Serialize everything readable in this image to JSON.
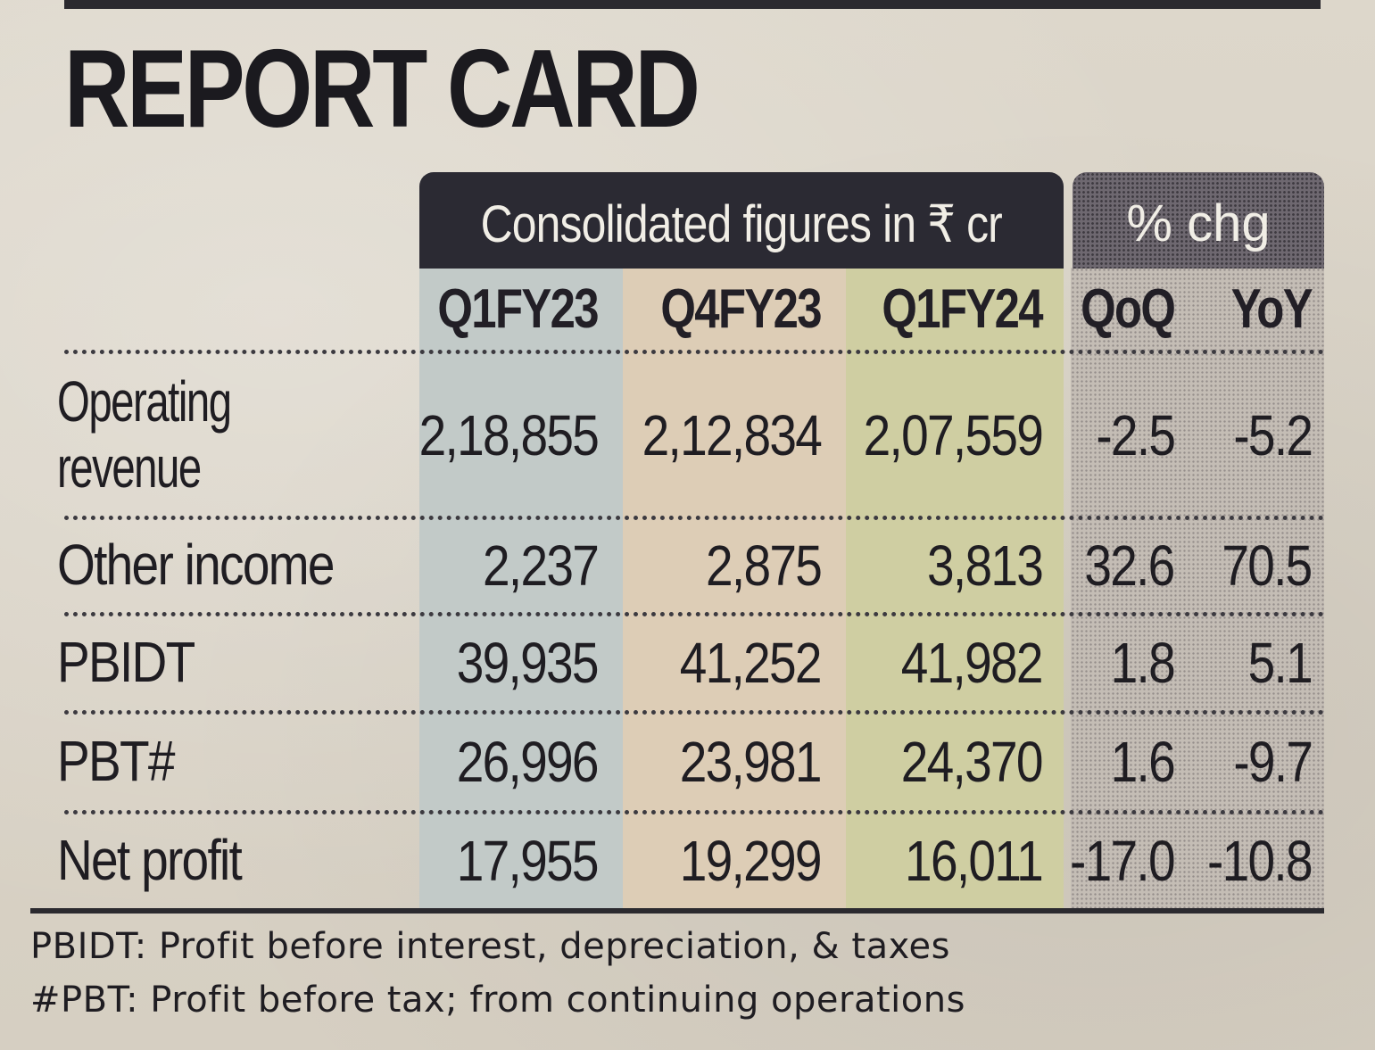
{
  "title": "REPORT CARD",
  "header": {
    "consolidated": "Consolidated figures in ₹ cr",
    "pct_change": "% chg"
  },
  "columns": [
    "Q1FY23",
    "Q4FY23",
    "Q1FY24",
    "QoQ",
    "YoY"
  ],
  "rows": [
    {
      "label": "Operating revenue",
      "label_line1": "Operating",
      "label_line2": "revenue",
      "values": [
        "2,18,855",
        "2,12,834",
        "2,07,559",
        "-2.5",
        "-5.2"
      ]
    },
    {
      "label": "Other income",
      "values": [
        "2,237",
        "2,875",
        "3,813",
        "32.6",
        "70.5"
      ]
    },
    {
      "label": "PBIDT",
      "values": [
        "39,935",
        "41,252",
        "41,982",
        "1.8",
        "5.1"
      ]
    },
    {
      "label": "PBT#",
      "values": [
        "26,996",
        "23,981",
        "24,370",
        "1.6",
        "-9.7"
      ]
    },
    {
      "label": "Net profit",
      "values": [
        "17,955",
        "19,299",
        "16,011",
        "-17.0",
        "-10.8"
      ]
    }
  ],
  "footnotes": [
    "PBIDT: Profit before interest, depreciation, & taxes",
    "#PBT: Profit before tax; from continuing operations"
  ],
  "colors": {
    "ink": "#1d1c1f",
    "header_bg": "#2b2a33",
    "q1fy23_band": "#c2cac8",
    "q4fy23_band": "#ddcdb6",
    "q1fy24_band": "#cfcea2"
  }
}
